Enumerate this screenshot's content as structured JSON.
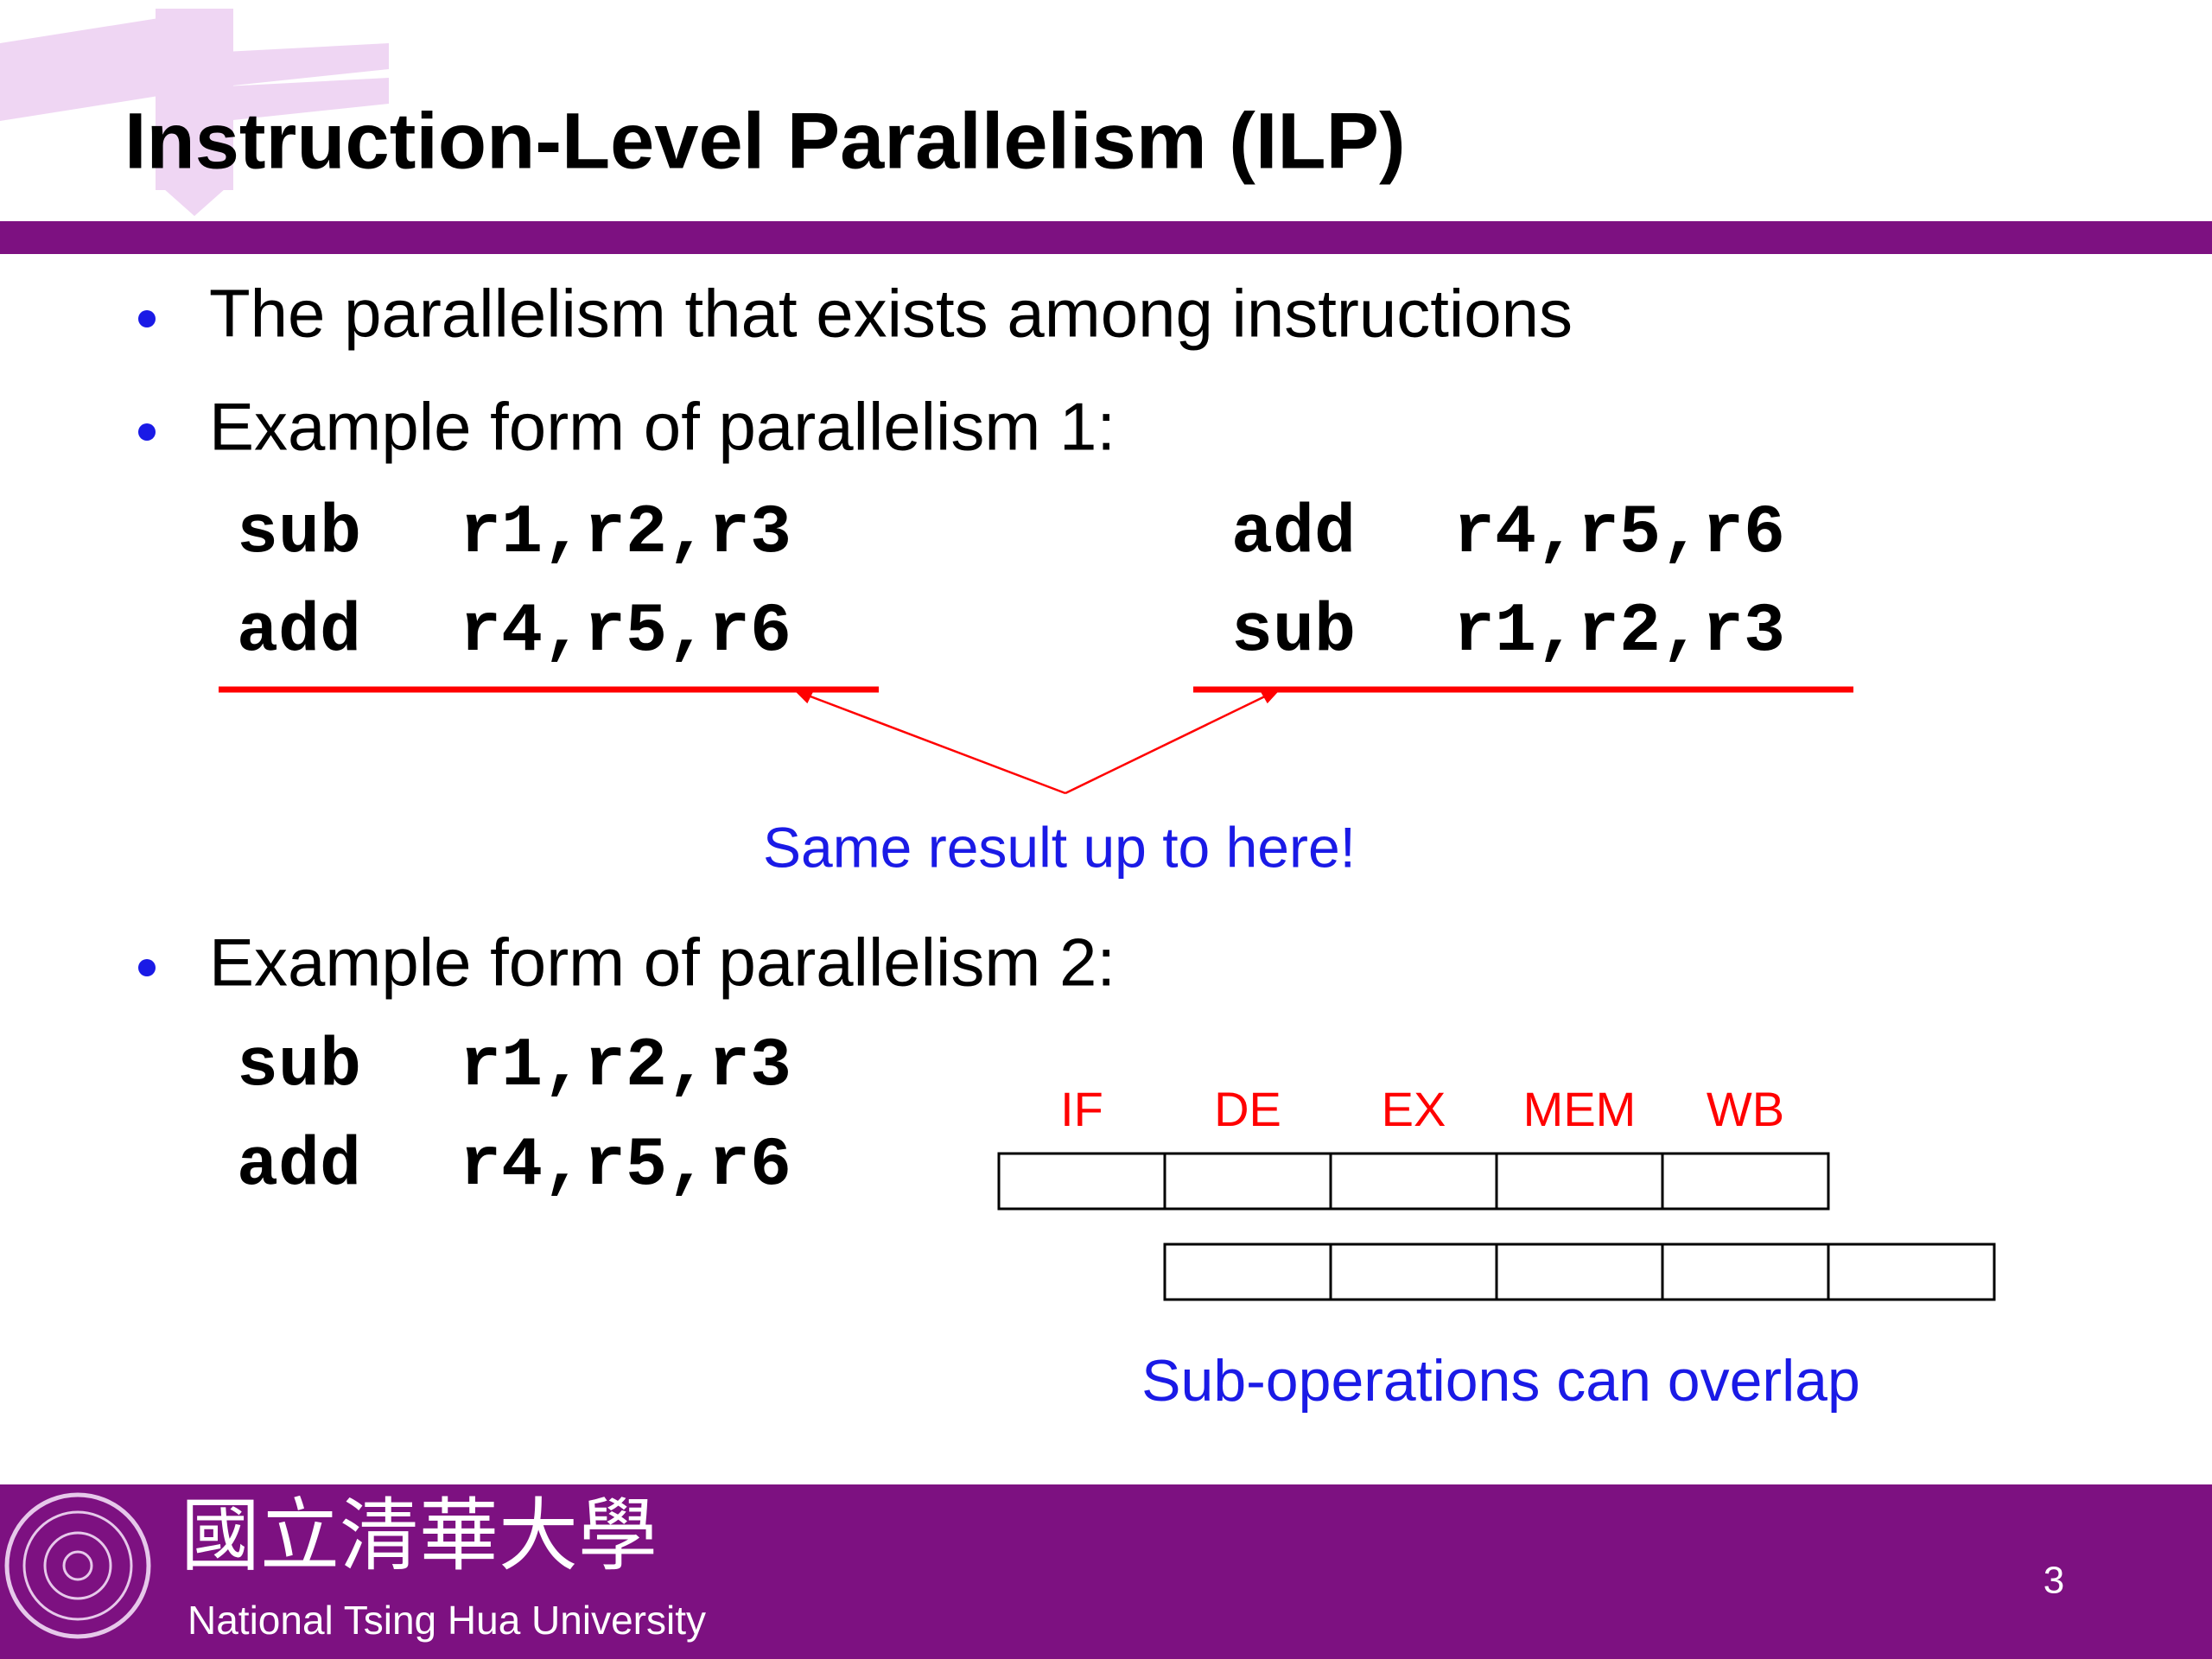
{
  "header": {
    "title": "Instruction-Level Parallelism (ILP)"
  },
  "bullets": [
    "The parallelism that exists among instructions",
    "Example form of parallelism 1:",
    "Example form of parallelism 2:"
  ],
  "example1": {
    "left": [
      [
        "sub",
        "r1,r2,r3"
      ],
      [
        "add",
        "r4,r5,r6"
      ]
    ],
    "right": [
      [
        "add",
        "r4,r5,r6"
      ],
      [
        "sub",
        "r1,r2,r3"
      ]
    ],
    "annotation": "Same result up to here!"
  },
  "example2": {
    "code": [
      [
        "sub",
        "r1,r2,r3"
      ],
      [
        "add",
        "r4,r5,r6"
      ]
    ],
    "stages": [
      "IF",
      "DE",
      "EX",
      "MEM",
      "WB"
    ],
    "annotation": "Sub-operations can overlap"
  },
  "footer": {
    "university_chinese": "國立清華大學",
    "university": "National Tsing Hua University",
    "page_number": "3"
  }
}
